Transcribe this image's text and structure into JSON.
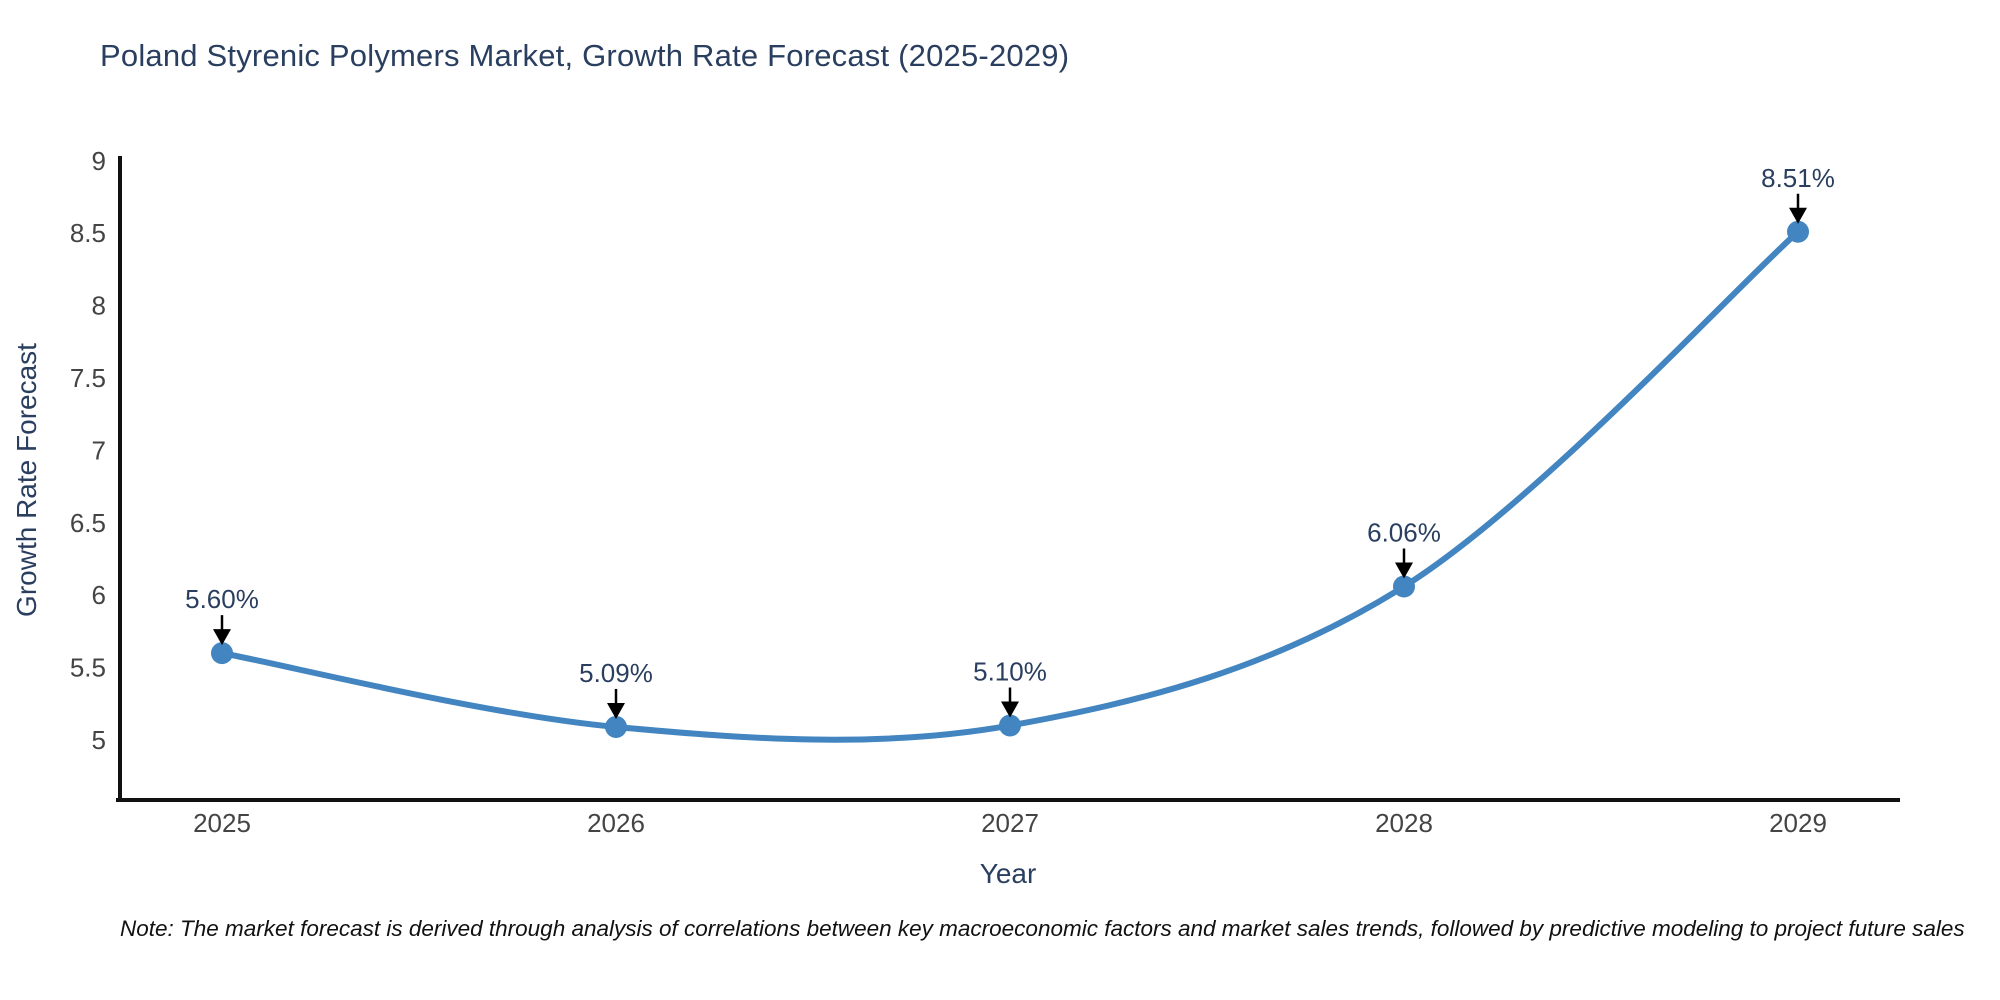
{
  "title": "Poland Styrenic Polymers Market, Growth Rate Forecast (2025-2029)",
  "note": "Note: The market forecast is derived through analysis of correlations between key macroeconomic factors and market sales trends, followed by predictive modeling to project future sales",
  "chart_data": {
    "type": "line",
    "title": "Poland Styrenic Polymers Market, Growth Rate Forecast (2025-2029)",
    "x": [
      "2025",
      "2026",
      "2027",
      "2028",
      "2029"
    ],
    "series": [
      {
        "name": "Growth Rate Forecast",
        "values": [
          5.6,
          5.09,
          5.1,
          6.06,
          8.51
        ]
      }
    ],
    "point_labels": [
      "5.60%",
      "5.09%",
      "5.10%",
      "6.06%",
      "8.51%"
    ],
    "xlabel": "Year",
    "ylabel": "Growth Rate Forecast",
    "yticks": [
      5,
      5.5,
      6,
      6.5,
      7,
      7.5,
      8,
      8.5,
      9
    ],
    "ylim": [
      4.58,
      9.02
    ],
    "line_shape": "spline",
    "grid": false,
    "legend_position": "none",
    "annotation_arrows": true,
    "colors": {
      "line": "#4285c0",
      "marker": "#4285c0",
      "axis": "#111111",
      "tick_label": "#444444",
      "title": "#2a3f5f",
      "annotation_text": "#2a3f5f",
      "annotation_arrow": "#000000",
      "background": "#ffffff"
    }
  }
}
